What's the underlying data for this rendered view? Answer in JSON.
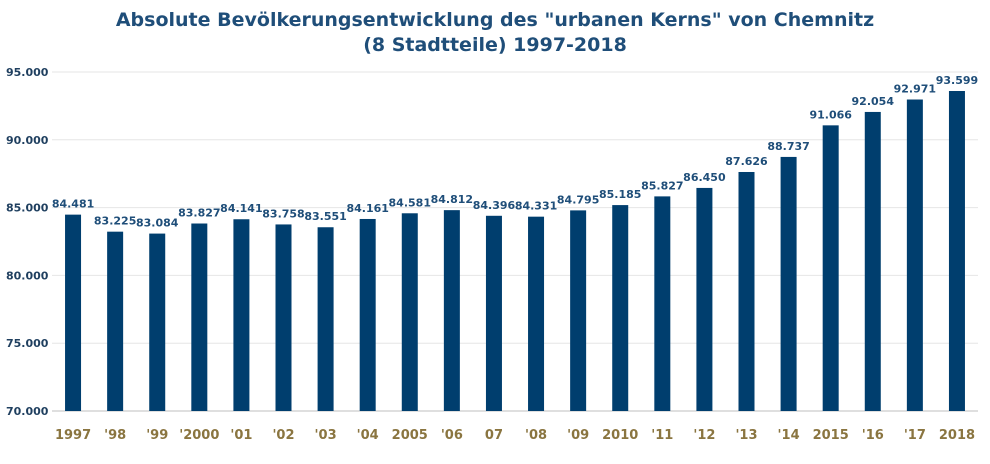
{
  "chart_data": {
    "type": "bar",
    "title_line1": "Absolute Bevölkerungsentwicklung des \"urbanen Kerns\" von Chemnitz",
    "title_line2": "(8 Stadtteile) 1997-2018",
    "categories": [
      "1997",
      "'98",
      "'99",
      "'2000",
      "'01",
      "'02",
      "'03",
      "'04",
      "2005",
      "'06",
      "07",
      "'08",
      "'09",
      "2010",
      "'11",
      "'12",
      "'13",
      "'14",
      "2015",
      "'16",
      "'17",
      "2018"
    ],
    "values": [
      84481,
      83225,
      83084,
      83827,
      84141,
      83758,
      83551,
      84161,
      84581,
      84812,
      84396,
      84331,
      84795,
      85185,
      85827,
      86450,
      87626,
      88737,
      91066,
      92054,
      92971,
      93599
    ],
    "value_labels": [
      "84.481",
      "83.225",
      "83.084",
      "83.827",
      "84.141",
      "83.758",
      "83.551",
      "84.161",
      "84.581",
      "84.812",
      "84.396",
      "84.331",
      "84.795",
      "85.185",
      "85.827",
      "86.450",
      "87.626",
      "88.737",
      "91.066",
      "92.054",
      "92.971",
      "93.599"
    ],
    "ylim": [
      70000,
      95000
    ],
    "yticks": [
      70000,
      75000,
      80000,
      85000,
      90000,
      95000
    ],
    "ytick_labels": [
      "70.000",
      "75.000",
      "80.000",
      "85.000",
      "90.000",
      "95.000"
    ],
    "xlabel": "",
    "ylabel": "",
    "grid": true,
    "legend": "none",
    "colors": {
      "bar": "#003e6e",
      "title": "#1f4e79",
      "data_label": "#1f4e79",
      "x_tick": "#8a7540",
      "y_tick": "#1f3f5f",
      "grid": "#e6e6e6"
    }
  }
}
